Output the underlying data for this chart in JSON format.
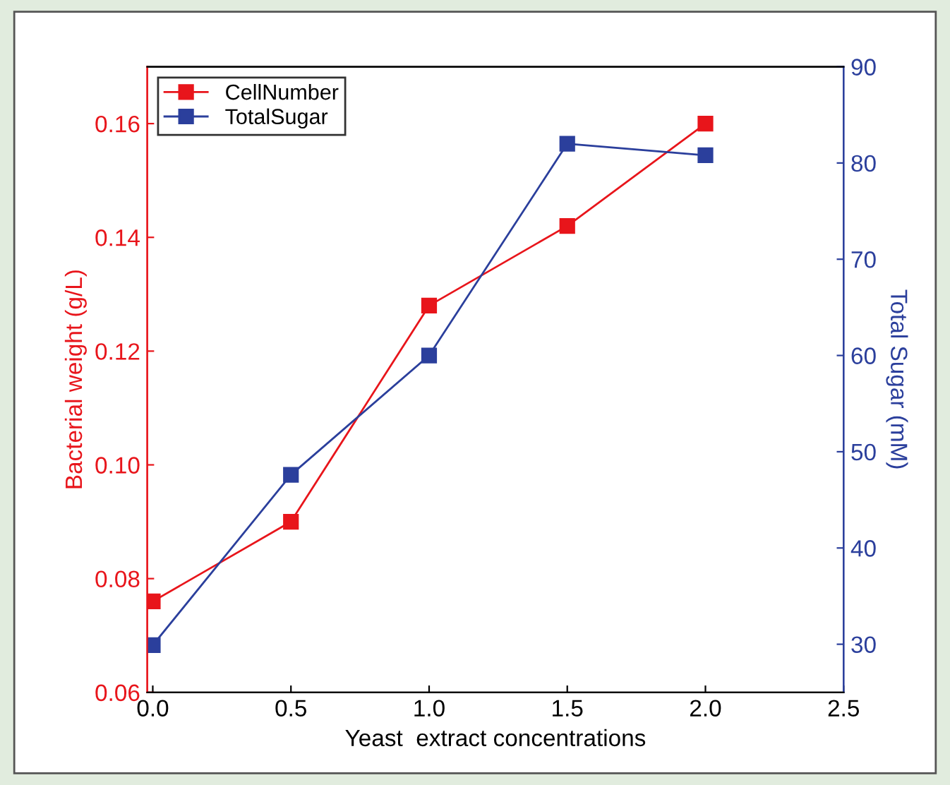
{
  "chart_data": {
    "type": "line",
    "xlabel": "Yeast  extract concentrations",
    "ylabel": "Bacterial weight (g/L)",
    "y2label": "Total Sugar (mM)",
    "x": [
      0.0,
      0.5,
      1.0,
      1.5,
      2.0
    ],
    "series": [
      {
        "name": "CellNumber",
        "color": "#e8151b",
        "values": [
          0.076,
          0.09,
          0.128,
          0.142,
          0.16
        ]
      },
      {
        "name": "TotalSugar",
        "color": "#2b3f9c",
        "values": [
          29.9,
          47.6,
          60,
          82,
          80.8
        ],
        "axis": "y2"
      }
    ],
    "xlim": [
      -0.02,
      2.5
    ],
    "xticks": [
      {
        "value": 0,
        "label": "0.0"
      },
      0.5,
      {
        "value": 1,
        "label": "1.0"
      },
      1.5,
      {
        "value": 2,
        "label": "2.0"
      },
      2.5
    ],
    "ylim": [
      0.06,
      0.17
    ],
    "yticks": [
      0.06,
      0.08,
      {
        "value": 0.1,
        "label": "0.10"
      },
      0.12,
      0.14,
      0.16
    ],
    "y2lim": [
      25,
      90
    ],
    "y2ticks": [
      30,
      40,
      50,
      60,
      70,
      80,
      90
    ],
    "marker": "square",
    "line_style": "solid",
    "legend": "top left",
    "grid": false
  }
}
